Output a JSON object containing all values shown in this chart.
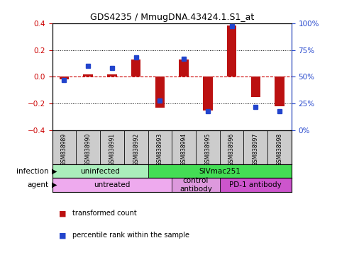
{
  "title": "GDS4235 / MmugDNA.43424.1.S1_at",
  "samples": [
    "GSM838989",
    "GSM838990",
    "GSM838991",
    "GSM838992",
    "GSM838993",
    "GSM838994",
    "GSM838995",
    "GSM838996",
    "GSM838997",
    "GSM838998"
  ],
  "transformed_count": [
    -0.02,
    0.02,
    0.02,
    0.13,
    -0.23,
    0.13,
    -0.25,
    0.38,
    -0.15,
    -0.22
  ],
  "percentile_rank": [
    47,
    60,
    58,
    68,
    28,
    67,
    18,
    97,
    22,
    18
  ],
  "bar_color": "#bb1111",
  "dot_color": "#2244cc",
  "ylim_left": [
    -0.4,
    0.4
  ],
  "ylim_right": [
    0,
    100
  ],
  "yticks_left": [
    -0.4,
    -0.2,
    0.0,
    0.2,
    0.4
  ],
  "yticks_right": [
    0,
    25,
    50,
    75,
    100
  ],
  "ytick_right_labels": [
    "0%",
    "25%",
    "50%",
    "75%",
    "100%"
  ],
  "infection_groups": [
    {
      "label": "uninfected",
      "start": 0,
      "end": 4,
      "color": "#aaeebb"
    },
    {
      "label": "SIVmac251",
      "start": 4,
      "end": 10,
      "color": "#44dd55"
    }
  ],
  "agent_groups": [
    {
      "label": "untreated",
      "start": 0,
      "end": 5,
      "color": "#eeaaee"
    },
    {
      "label": "control\nantibody",
      "start": 5,
      "end": 7,
      "color": "#dd99dd"
    },
    {
      "label": "PD-1 antibody",
      "start": 7,
      "end": 10,
      "color": "#cc55cc"
    }
  ],
  "background_color": "#ffffff",
  "zero_line_color": "#cc0000",
  "grid_color": "#000000",
  "sample_box_color": "#cccccc"
}
